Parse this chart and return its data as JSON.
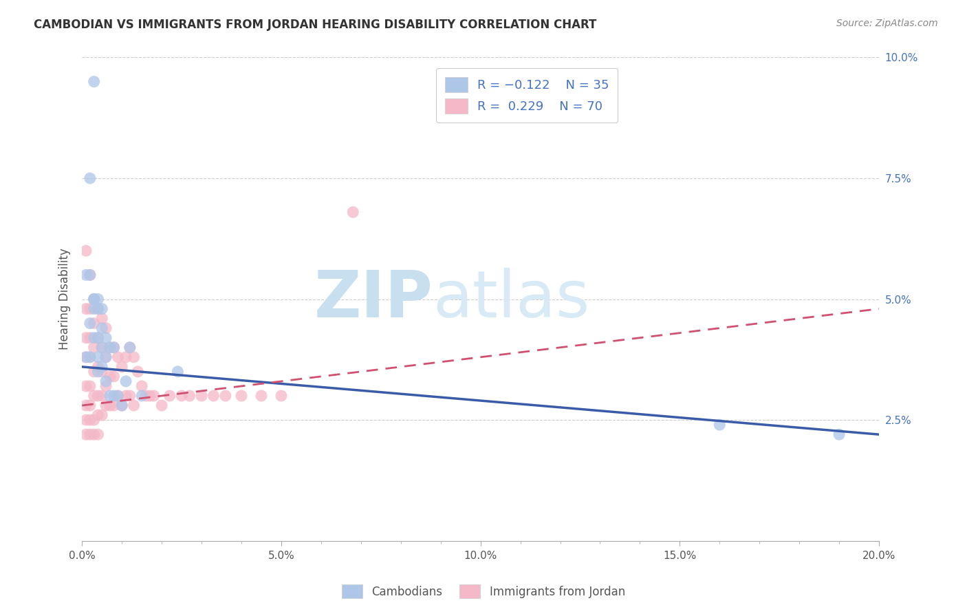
{
  "title": "CAMBODIAN VS IMMIGRANTS FROM JORDAN HEARING DISABILITY CORRELATION CHART",
  "source": "Source: ZipAtlas.com",
  "ylabel": "Hearing Disability",
  "xlim": [
    0.0,
    0.2
  ],
  "ylim": [
    0.0,
    0.1
  ],
  "color_cambodian": "#aec6e8",
  "color_jordan": "#f4b8c8",
  "color_line_cambodian": "#3a5ca8",
  "color_line_jordan": "#d05070",
  "watermark_zip": "ZIP",
  "watermark_atlas": "atlas",
  "cam_line_y0": 0.036,
  "cam_line_y1": 0.022,
  "jor_line_y0": 0.028,
  "jor_line_y1": 0.048,
  "cambodian_x": [
    0.003,
    0.001,
    0.002,
    0.002,
    0.001,
    0.002,
    0.003,
    0.002,
    0.003,
    0.003,
    0.003,
    0.004,
    0.004,
    0.004,
    0.004,
    0.004,
    0.005,
    0.005,
    0.005,
    0.005,
    0.006,
    0.006,
    0.006,
    0.007,
    0.007,
    0.008,
    0.008,
    0.009,
    0.01,
    0.011,
    0.012,
    0.015,
    0.024,
    0.16,
    0.19
  ],
  "cambodian_y": [
    0.095,
    0.055,
    0.055,
    0.075,
    0.038,
    0.038,
    0.05,
    0.045,
    0.05,
    0.048,
    0.042,
    0.05,
    0.048,
    0.042,
    0.038,
    0.035,
    0.048,
    0.044,
    0.04,
    0.036,
    0.042,
    0.038,
    0.033,
    0.04,
    0.03,
    0.04,
    0.03,
    0.03,
    0.028,
    0.033,
    0.04,
    0.03,
    0.035,
    0.024,
    0.022
  ],
  "jordan_x": [
    0.001,
    0.001,
    0.001,
    0.001,
    0.001,
    0.001,
    0.001,
    0.001,
    0.002,
    0.002,
    0.002,
    0.002,
    0.002,
    0.002,
    0.002,
    0.002,
    0.003,
    0.003,
    0.003,
    0.003,
    0.003,
    0.003,
    0.003,
    0.004,
    0.004,
    0.004,
    0.004,
    0.004,
    0.004,
    0.005,
    0.005,
    0.005,
    0.005,
    0.005,
    0.006,
    0.006,
    0.006,
    0.006,
    0.007,
    0.007,
    0.007,
    0.008,
    0.008,
    0.008,
    0.009,
    0.009,
    0.01,
    0.01,
    0.011,
    0.011,
    0.012,
    0.012,
    0.013,
    0.013,
    0.014,
    0.015,
    0.016,
    0.017,
    0.018,
    0.02,
    0.022,
    0.025,
    0.027,
    0.03,
    0.033,
    0.036,
    0.04,
    0.045,
    0.05,
    0.068
  ],
  "jordan_y": [
    0.06,
    0.048,
    0.042,
    0.038,
    0.032,
    0.028,
    0.025,
    0.022,
    0.055,
    0.048,
    0.042,
    0.038,
    0.032,
    0.028,
    0.025,
    0.022,
    0.05,
    0.045,
    0.04,
    0.035,
    0.03,
    0.025,
    0.022,
    0.048,
    0.042,
    0.036,
    0.03,
    0.026,
    0.022,
    0.046,
    0.04,
    0.035,
    0.03,
    0.026,
    0.044,
    0.038,
    0.032,
    0.028,
    0.04,
    0.034,
    0.028,
    0.04,
    0.034,
    0.028,
    0.038,
    0.03,
    0.036,
    0.028,
    0.038,
    0.03,
    0.04,
    0.03,
    0.038,
    0.028,
    0.035,
    0.032,
    0.03,
    0.03,
    0.03,
    0.028,
    0.03,
    0.03,
    0.03,
    0.03,
    0.03,
    0.03,
    0.03,
    0.03,
    0.03,
    0.068
  ]
}
